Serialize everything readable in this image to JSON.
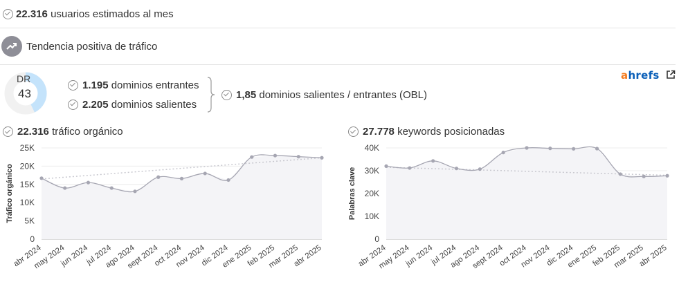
{
  "summary": {
    "monthly_users_value": "22.316",
    "monthly_users_label": "usuarios estimados al mes",
    "trend_label": "Tendencia positiva de tráfico"
  },
  "dr": {
    "label": "DR",
    "value": "43",
    "score": 43
  },
  "links": {
    "inbound_value": "1.195",
    "inbound_label": "dominios entrantes",
    "outbound_value": "2.205",
    "outbound_label": "dominios salientes",
    "obl_value": "1,85",
    "obl_label": "dominios salientes / entrantes (OBL)"
  },
  "brand": {
    "a": "a",
    "rest": "hrefs"
  },
  "colors": {
    "line": "#a6a6b2",
    "area": "#f4f4f7",
    "trend": "#c8c8cf",
    "gauge": "#c4e3fb",
    "gauge_bg": "#f1f1f1"
  },
  "chart_data": [
    {
      "type": "line",
      "title_value": "22.316",
      "title_label": "tráfico orgánico",
      "ylabel": "Tráfico orgánico",
      "ylim": [
        0,
        25000
      ],
      "yticks": [
        {
          "v": 0,
          "label": "0"
        },
        {
          "v": 5000,
          "label": "5K"
        },
        {
          "v": 10000,
          "label": "10K"
        },
        {
          "v": 15000,
          "label": "15K"
        },
        {
          "v": 20000,
          "label": "20K"
        },
        {
          "v": 25000,
          "label": "25K"
        }
      ],
      "categories": [
        "abr 2024",
        "may 2024",
        "jun 2024",
        "jul 2024",
        "ago 2024",
        "sept 2024",
        "oct 2024",
        "nov 2024",
        "dic 2024",
        "ene 2025",
        "feb 2025",
        "mar 2025",
        "abr 2025"
      ],
      "values": [
        16700,
        14000,
        15500,
        14000,
        13100,
        17000,
        16600,
        18000,
        16200,
        22500,
        22900,
        22600,
        22300
      ],
      "trendline": [
        16500,
        22300
      ],
      "grid": true
    },
    {
      "type": "line",
      "title_value": "27.778",
      "title_label": "keywords posicionadas",
      "ylabel": "Palabras clave",
      "ylim": [
        0,
        40000
      ],
      "yticks": [
        {
          "v": 0,
          "label": "0"
        },
        {
          "v": 10000,
          "label": "10K"
        },
        {
          "v": 20000,
          "label": "20K"
        },
        {
          "v": 30000,
          "label": "30K"
        },
        {
          "v": 40000,
          "label": "40K"
        }
      ],
      "categories": [
        "abr 2024",
        "may 2024",
        "jun 2024",
        "jul 2024",
        "ago 2024",
        "sept 2024",
        "oct 2024",
        "nov 2024",
        "dic 2024",
        "ene 2025",
        "feb 2025",
        "mar 2025",
        "abr 2025"
      ],
      "values": [
        32000,
        31200,
        34300,
        31000,
        30700,
        38000,
        40000,
        39800,
        39600,
        39700,
        28500,
        27500,
        27800
      ],
      "trendline": [
        31500,
        28000
      ],
      "grid": true
    }
  ]
}
